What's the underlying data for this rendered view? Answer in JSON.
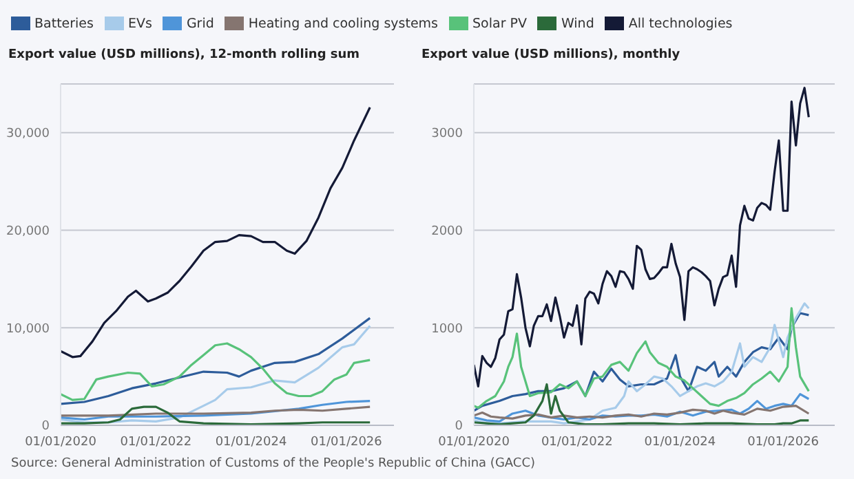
{
  "chart_data": [
    {
      "type": "line",
      "title": "Export value (USD millions), 12-month rolling sum",
      "legend": "top",
      "grid": "y",
      "marker": "none",
      "xlim": [
        "2020-01",
        "2027-01"
      ],
      "xticks": [
        {
          "value": "2020-01-01",
          "label": "01/01/2020"
        },
        {
          "value": "2022-01-01",
          "label": "01/01/2022"
        },
        {
          "value": "2024-01-01",
          "label": "01/01/2024"
        },
        {
          "value": "2026-01-01",
          "label": "01/01/2026"
        }
      ],
      "ylim": [
        0,
        35000
      ],
      "yticks": [
        0,
        {
          "value": 10000,
          "label": "10,000"
        },
        {
          "value": 20000,
          "label": "20,000"
        },
        {
          "value": 30000,
          "label": "30,000"
        }
      ],
      "annotations": [
        "Source: General Administration of Customs of the People's Republic of China (GACC)"
      ],
      "series": [
        {
          "name": "Batteries",
          "color": "#2d5c9a",
          "x": [
            "2020-01",
            "2020-07",
            "2021-01",
            "2021-07",
            "2022-01",
            "2022-07",
            "2023-01",
            "2023-07",
            "2023-10",
            "2024-01",
            "2024-07",
            "2024-12",
            "2025-06",
            "2025-12",
            "2026-07"
          ],
          "values": [
            2200,
            2400,
            3000,
            3800,
            4300,
            4900,
            5500,
            5400,
            5000,
            5600,
            6400,
            6500,
            7300,
            8900,
            11000
          ]
        },
        {
          "name": "EVs",
          "color": "#a7cbea",
          "x": [
            "2020-01",
            "2020-07",
            "2021-01",
            "2021-07",
            "2022-01",
            "2022-07",
            "2023-01",
            "2023-04",
            "2023-07",
            "2024-01",
            "2024-07",
            "2024-12",
            "2025-06",
            "2025-12",
            "2026-03",
            "2026-07"
          ],
          "values": [
            600,
            300,
            300,
            500,
            400,
            800,
            2000,
            2600,
            3700,
            3900,
            4600,
            4400,
            5900,
            8000,
            8300,
            10200
          ]
        },
        {
          "name": "Grid",
          "color": "#4f95d9",
          "x": [
            "2020-01",
            "2020-07",
            "2021-01",
            "2022-01",
            "2023-01",
            "2024-01",
            "2025-01",
            "2025-07",
            "2026-01",
            "2026-07"
          ],
          "values": [
            800,
            600,
            900,
            900,
            1000,
            1200,
            1700,
            2100,
            2400,
            2500
          ]
        },
        {
          "name": "Heating and cooling systems",
          "color": "#857570",
          "x": [
            "2020-01",
            "2021-01",
            "2022-01",
            "2023-01",
            "2024-01",
            "2024-07",
            "2025-01",
            "2025-07",
            "2026-01",
            "2026-07"
          ],
          "values": [
            1000,
            1000,
            1200,
            1200,
            1300,
            1500,
            1600,
            1500,
            1700,
            1900
          ]
        },
        {
          "name": "Solar PV",
          "color": "#58c27a",
          "x": [
            "2020-01",
            "2020-04",
            "2020-07",
            "2020-10",
            "2021-01",
            "2021-06",
            "2021-09",
            "2021-12",
            "2022-03",
            "2022-07",
            "2022-10",
            "2023-01",
            "2023-04",
            "2023-07",
            "2023-10",
            "2024-01",
            "2024-04",
            "2024-07",
            "2024-10",
            "2025-01",
            "2025-04",
            "2025-07",
            "2025-10",
            "2026-01",
            "2026-03",
            "2026-07"
          ],
          "values": [
            3200,
            2600,
            2700,
            4700,
            5000,
            5400,
            5300,
            4000,
            4200,
            5000,
            6200,
            7200,
            8200,
            8400,
            7800,
            7000,
            5800,
            4300,
            3300,
            3000,
            3000,
            3500,
            4700,
            5200,
            6400,
            6700
          ]
        },
        {
          "name": "Wind",
          "color": "#2b6a3a",
          "x": [
            "2020-01",
            "2020-07",
            "2021-01",
            "2021-04",
            "2021-07",
            "2021-10",
            "2022-01",
            "2022-04",
            "2022-07",
            "2023-01",
            "2024-01",
            "2025-01",
            "2025-07",
            "2026-01",
            "2026-07"
          ],
          "values": [
            200,
            200,
            300,
            600,
            1700,
            1900,
            1900,
            1300,
            400,
            200,
            100,
            200,
            300,
            300,
            300
          ]
        },
        {
          "name": "All technologies",
          "color": "#141a36",
          "x": [
            "2020-01",
            "2020-04",
            "2020-06",
            "2020-09",
            "2020-12",
            "2021-03",
            "2021-06",
            "2021-08",
            "2021-11",
            "2022-01",
            "2022-04",
            "2022-07",
            "2022-10",
            "2023-01",
            "2023-04",
            "2023-07",
            "2023-10",
            "2024-01",
            "2024-04",
            "2024-07",
            "2024-10",
            "2024-12",
            "2025-03",
            "2025-06",
            "2025-09",
            "2025-12",
            "2026-03",
            "2026-07"
          ],
          "values": [
            7600,
            7000,
            7100,
            8600,
            10500,
            11700,
            13200,
            13800,
            12700,
            13000,
            13600,
            14800,
            16300,
            17900,
            18800,
            18900,
            19500,
            19400,
            18800,
            18800,
            17900,
            17600,
            18900,
            21300,
            24300,
            26400,
            29200,
            32600
          ]
        }
      ]
    },
    {
      "type": "line",
      "title": "Export value (USD millions), monthly",
      "grid": "y",
      "marker": "none",
      "xlim": [
        "2020-01",
        "2027-01"
      ],
      "xticks": [
        {
          "value": "2020-01-01",
          "label": "01/01/2020"
        },
        {
          "value": "2022-01-01",
          "label": "01/01/2022"
        },
        {
          "value": "2024-01-01",
          "label": "01/01/2024"
        },
        {
          "value": "2026-01-01",
          "label": "01/01/2026"
        }
      ],
      "ylim": [
        0,
        3500
      ],
      "yticks": [
        0,
        1000,
        2000,
        3000
      ],
      "series": [
        {
          "color": "#2d5c9a",
          "x": [
            "2020-01",
            "2020-03",
            "2020-07",
            "2020-10",
            "2021-01",
            "2021-04",
            "2021-07",
            "2021-10",
            "2022-01",
            "2022-03",
            "2022-05",
            "2022-07",
            "2022-09",
            "2022-11",
            "2023-01",
            "2023-04",
            "2023-07",
            "2023-10",
            "2023-12",
            "2024-01",
            "2024-03",
            "2024-05",
            "2024-07",
            "2024-09",
            "2024-10",
            "2024-12",
            "2025-02",
            "2025-04",
            "2025-06",
            "2025-08",
            "2025-10",
            "2025-12",
            "2026-02",
            "2026-03",
            "2026-05",
            "2026-07"
          ],
          "values": [
            150,
            200,
            250,
            300,
            320,
            350,
            350,
            380,
            450,
            300,
            550,
            450,
            580,
            470,
            400,
            420,
            420,
            480,
            720,
            500,
            350,
            600,
            560,
            650,
            500,
            600,
            500,
            650,
            750,
            800,
            780,
            900,
            780,
            1000,
            1150,
            1130
          ]
        },
        {
          "color": "#a7cbea",
          "x": [
            "2020-01",
            "2020-04",
            "2020-07",
            "2020-10",
            "2021-01",
            "2021-04",
            "2021-07",
            "2021-10",
            "2022-01",
            "2022-04",
            "2022-07",
            "2022-10",
            "2022-12",
            "2023-01",
            "2023-03",
            "2023-05",
            "2023-07",
            "2023-09",
            "2023-11",
            "2024-01",
            "2024-03",
            "2024-05",
            "2024-07",
            "2024-09",
            "2024-11",
            "2025-01",
            "2025-03",
            "2025-04",
            "2025-06",
            "2025-08",
            "2025-10",
            "2025-11",
            "2026-01",
            "2026-02",
            "2026-04",
            "2026-06",
            "2026-07"
          ],
          "values": [
            50,
            20,
            20,
            30,
            40,
            40,
            40,
            20,
            40,
            60,
            150,
            180,
            300,
            450,
            350,
            420,
            500,
            480,
            400,
            300,
            350,
            400,
            430,
            400,
            450,
            550,
            840,
            600,
            700,
            650,
            800,
            1030,
            700,
            900,
            1100,
            1250,
            1200
          ]
        },
        {
          "color": "#4f95d9",
          "x": [
            "2020-01",
            "2020-04",
            "2020-07",
            "2020-10",
            "2021-01",
            "2021-04",
            "2021-07",
            "2021-10",
            "2022-01",
            "2022-04",
            "2022-07",
            "2022-10",
            "2023-01",
            "2023-04",
            "2023-07",
            "2023-10",
            "2024-01",
            "2024-04",
            "2024-07",
            "2024-10",
            "2025-01",
            "2025-03",
            "2025-05",
            "2025-07",
            "2025-09",
            "2025-11",
            "2026-01",
            "2026-03",
            "2026-05",
            "2026-07"
          ],
          "values": [
            80,
            50,
            40,
            120,
            150,
            100,
            80,
            60,
            80,
            60,
            100,
            90,
            100,
            100,
            110,
            90,
            140,
            100,
            140,
            150,
            160,
            120,
            170,
            250,
            170,
            200,
            220,
            200,
            320,
            270
          ]
        },
        {
          "color": "#857570",
          "x": [
            "2020-01",
            "2020-03",
            "2020-05",
            "2020-07",
            "2020-10",
            "2021-01",
            "2021-04",
            "2021-07",
            "2021-10",
            "2022-01",
            "2022-04",
            "2022-07",
            "2022-10",
            "2023-01",
            "2023-04",
            "2023-07",
            "2023-10",
            "2024-01",
            "2024-04",
            "2024-07",
            "2024-09",
            "2024-11",
            "2025-01",
            "2025-04",
            "2025-07",
            "2025-10",
            "2026-01",
            "2026-04",
            "2026-07"
          ],
          "values": [
            100,
            130,
            90,
            80,
            70,
            100,
            110,
            80,
            100,
            80,
            90,
            80,
            100,
            110,
            90,
            120,
            110,
            130,
            160,
            150,
            120,
            150,
            130,
            110,
            170,
            150,
            190,
            200,
            120
          ]
        },
        {
          "color": "#58c27a",
          "x": [
            "2020-01",
            "2020-02",
            "2020-04",
            "2020-06",
            "2020-08",
            "2020-09",
            "2020-10",
            "2020-11",
            "2020-12",
            "2021-01",
            "2021-02",
            "2021-04",
            "2021-07",
            "2021-09",
            "2021-11",
            "2022-01",
            "2022-03",
            "2022-05",
            "2022-07",
            "2022-09",
            "2022-11",
            "2023-01",
            "2023-03",
            "2023-05",
            "2023-06",
            "2023-08",
            "2023-10",
            "2023-12",
            "2024-02",
            "2024-04",
            "2024-06",
            "2024-08",
            "2024-10",
            "2024-12",
            "2025-02",
            "2025-04",
            "2025-06",
            "2025-08",
            "2025-10",
            "2025-12",
            "2026-02",
            "2026-03",
            "2026-04",
            "2026-05",
            "2026-07"
          ],
          "values": [
            200,
            180,
            250,
            300,
            450,
            600,
            700,
            940,
            600,
            450,
            300,
            330,
            340,
            420,
            380,
            450,
            300,
            480,
            500,
            620,
            650,
            560,
            740,
            860,
            750,
            640,
            600,
            500,
            460,
            380,
            300,
            220,
            200,
            250,
            280,
            330,
            420,
            480,
            550,
            450,
            600,
            1200,
            800,
            500,
            350
          ]
        },
        {
          "color": "#2b6a3a",
          "x": [
            "2020-01",
            "2020-04",
            "2020-07",
            "2020-10",
            "2021-01",
            "2021-03",
            "2021-05",
            "2021-06",
            "2021-07",
            "2021-08",
            "2021-09",
            "2021-11",
            "2022-01",
            "2022-03",
            "2022-07",
            "2023-01",
            "2023-07",
            "2024-01",
            "2024-07",
            "2025-01",
            "2025-07",
            "2025-11",
            "2026-01",
            "2026-03",
            "2026-05",
            "2026-07"
          ],
          "values": [
            30,
            20,
            10,
            20,
            30,
            100,
            250,
            420,
            120,
            300,
            150,
            30,
            20,
            10,
            10,
            20,
            20,
            10,
            20,
            20,
            10,
            10,
            20,
            20,
            50,
            50
          ]
        },
        {
          "color": "#141a36",
          "x": [
            "2020-01",
            "2020-02",
            "2020-03",
            "2020-04",
            "2020-05",
            "2020-06",
            "2020-07",
            "2020-08",
            "2020-09",
            "2020-10",
            "2020-11",
            "2020-12",
            "2021-01",
            "2021-02",
            "2021-03",
            "2021-04",
            "2021-05",
            "2021-06",
            "2021-07",
            "2021-08",
            "2021-09",
            "2021-10",
            "2021-11",
            "2021-12",
            "2022-01",
            "2022-02",
            "2022-03",
            "2022-04",
            "2022-05",
            "2022-06",
            "2022-07",
            "2022-08",
            "2022-09",
            "2022-10",
            "2022-11",
            "2022-12",
            "2023-01",
            "2023-02",
            "2023-03",
            "2023-04",
            "2023-05",
            "2023-06",
            "2023-07",
            "2023-08",
            "2023-09",
            "2023-10",
            "2023-11",
            "2023-12",
            "2024-01",
            "2024-02",
            "2024-03",
            "2024-04",
            "2024-05",
            "2024-06",
            "2024-07",
            "2024-08",
            "2024-09",
            "2024-10",
            "2024-11",
            "2024-12",
            "2025-01",
            "2025-02",
            "2025-03",
            "2025-04",
            "2025-05",
            "2025-06",
            "2025-07",
            "2025-08",
            "2025-09",
            "2025-10",
            "2025-11",
            "2025-12",
            "2026-01",
            "2026-02",
            "2026-03",
            "2026-04",
            "2026-05",
            "2026-06",
            "2026-07"
          ],
          "values": [
            620,
            400,
            710,
            640,
            600,
            690,
            880,
            930,
            1170,
            1190,
            1550,
            1310,
            1000,
            810,
            1020,
            1120,
            1120,
            1240,
            1070,
            1310,
            1120,
            900,
            1050,
            1020,
            1230,
            830,
            1300,
            1370,
            1350,
            1250,
            1450,
            1580,
            1530,
            1420,
            1580,
            1570,
            1500,
            1400,
            1840,
            1800,
            1600,
            1500,
            1510,
            1560,
            1620,
            1620,
            1860,
            1660,
            1520,
            1080,
            1580,
            1620,
            1600,
            1570,
            1530,
            1480,
            1230,
            1400,
            1520,
            1540,
            1740,
            1420,
            2050,
            2250,
            2120,
            2100,
            2230,
            2280,
            2260,
            2210,
            2600,
            2920,
            2200,
            2200,
            3320,
            2870,
            3300,
            3460,
            3160
          ]
        }
      ]
    }
  ]
}
